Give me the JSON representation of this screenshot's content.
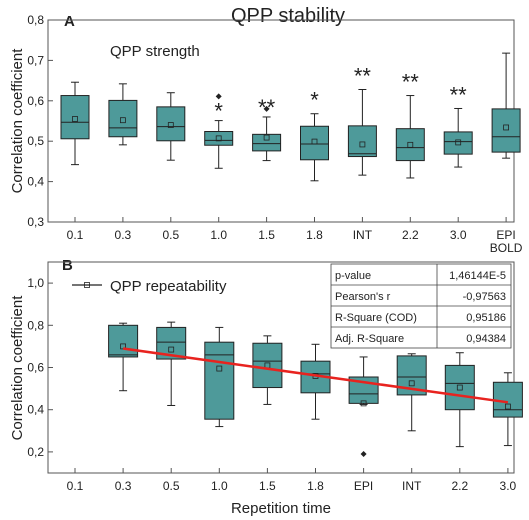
{
  "figure_title": "QPP stability",
  "chart_data": [
    {
      "panel": "A",
      "type": "box",
      "subtitle": "QPP strength",
      "ylabel": "Correlation coefficient",
      "ylim": [
        0.3,
        0.8
      ],
      "yticks": [
        "0,3",
        "0,4",
        "0,5",
        "0,6",
        "0,7",
        "0,8"
      ],
      "ytick_values": [
        0.3,
        0.4,
        0.5,
        0.6,
        0.7,
        0.8
      ],
      "categories": [
        "0.1",
        "0.3",
        "0.5",
        "1.0",
        "1.5",
        "1.8",
        "INT",
        "2.2",
        "3.0",
        "EPI\nBOLD"
      ],
      "xtick_labels": [
        [
          "0.1"
        ],
        [
          "0.3"
        ],
        [
          "0.5"
        ],
        [
          "1.0"
        ],
        [
          "1.5"
        ],
        [
          "1.8"
        ],
        [
          "INT"
        ],
        [
          "2.2"
        ],
        [
          "3.0"
        ],
        [
          "EPI",
          "BOLD"
        ]
      ],
      "boxes": [
        {
          "whisker_low": 0.442,
          "q1": 0.506,
          "median": 0.547,
          "q3": 0.613,
          "whisker_high": 0.646,
          "mean": 0.555,
          "outliers": [],
          "significance": ""
        },
        {
          "whisker_low": 0.491,
          "q1": 0.511,
          "median": 0.533,
          "q3": 0.601,
          "whisker_high": 0.642,
          "mean": 0.552,
          "outliers": [],
          "significance": ""
        },
        {
          "whisker_low": 0.453,
          "q1": 0.501,
          "median": 0.536,
          "q3": 0.585,
          "whisker_high": 0.62,
          "mean": 0.54,
          "outliers": [],
          "significance": ""
        },
        {
          "whisker_low": 0.433,
          "q1": 0.49,
          "median": 0.502,
          "q3": 0.524,
          "whisker_high": 0.551,
          "mean": 0.507,
          "outliers": [
            0.611
          ],
          "significance": "*"
        },
        {
          "whisker_low": 0.452,
          "q1": 0.476,
          "median": 0.494,
          "q3": 0.517,
          "whisker_high": 0.56,
          "mean": 0.509,
          "outliers": [
            0.58
          ],
          "significance": "**"
        },
        {
          "whisker_low": 0.402,
          "q1": 0.454,
          "median": 0.493,
          "q3": 0.537,
          "whisker_high": 0.568,
          "mean": 0.499,
          "outliers": [],
          "significance": "*"
        },
        {
          "whisker_low": 0.416,
          "q1": 0.462,
          "median": 0.469,
          "q3": 0.538,
          "whisker_high": 0.628,
          "mean": 0.492,
          "outliers": [],
          "significance": "**"
        },
        {
          "whisker_low": 0.409,
          "q1": 0.452,
          "median": 0.484,
          "q3": 0.531,
          "whisker_high": 0.613,
          "mean": 0.491,
          "outliers": [],
          "significance": "**"
        },
        {
          "whisker_low": 0.436,
          "q1": 0.468,
          "median": 0.499,
          "q3": 0.523,
          "whisker_high": 0.581,
          "mean": 0.497,
          "outliers": [],
          "significance": "**"
        },
        {
          "whisker_low": 0.458,
          "q1": 0.473,
          "median": 0.511,
          "q3": 0.58,
          "whisker_high": 0.718,
          "mean": 0.534,
          "outliers": [],
          "significance": ""
        }
      ],
      "box_color": "#4e9a9a",
      "grid": false
    },
    {
      "panel": "B",
      "type": "box",
      "subtitle": "QPP repeatability",
      "xlabel": "Repetition time",
      "ylabel": "Correlation coefficient",
      "ylim": [
        0.1,
        1.1
      ],
      "yticks": [
        "0,2",
        "0,4",
        "0,6",
        "0,8",
        "1,0"
      ],
      "ytick_values": [
        0.2,
        0.4,
        0.6,
        0.8,
        1.0
      ],
      "categories": [
        "0.1",
        "0.3",
        "0.5",
        "1.0",
        "1.5",
        "1.8",
        "EPI",
        "INT",
        "2.2",
        "3.0"
      ],
      "xtick_labels": [
        [
          "0.1"
        ],
        [
          "0.3"
        ],
        [
          "0.5"
        ],
        [
          "1.0"
        ],
        [
          "1.5"
        ],
        [
          "1.8"
        ],
        [
          "EPI"
        ],
        [
          "INT"
        ],
        [
          "2.2"
        ],
        [
          "3.0"
        ]
      ],
      "boxes": [
        null,
        {
          "whisker_low": 0.49,
          "q1": 0.65,
          "median": 0.66,
          "q3": 0.8,
          "whisker_high": 0.81,
          "mean": 0.7,
          "outliers": []
        },
        {
          "whisker_low": 0.42,
          "q1": 0.64,
          "median": 0.72,
          "q3": 0.79,
          "whisker_high": 0.815,
          "mean": 0.685,
          "outliers": []
        },
        {
          "whisker_low": 0.32,
          "q1": 0.355,
          "median": 0.66,
          "q3": 0.72,
          "whisker_high": 0.79,
          "mean": 0.595,
          "outliers": []
        },
        {
          "whisker_low": 0.425,
          "q1": 0.505,
          "median": 0.63,
          "q3": 0.715,
          "whisker_high": 0.75,
          "mean": 0.61,
          "outliers": []
        },
        {
          "whisker_low": 0.355,
          "q1": 0.48,
          "median": 0.57,
          "q3": 0.63,
          "whisker_high": 0.71,
          "mean": 0.56,
          "outliers": []
        },
        {
          "whisker_low": 0.425,
          "q1": 0.43,
          "median": 0.475,
          "q3": 0.555,
          "whisker_high": 0.65,
          "mean": 0.43,
          "outliers": [
            0.19
          ]
        },
        {
          "whisker_low": 0.3,
          "q1": 0.47,
          "median": 0.555,
          "q3": 0.655,
          "whisker_high": 0.665,
          "mean": 0.525,
          "outliers": []
        },
        {
          "whisker_low": 0.225,
          "q1": 0.4,
          "median": 0.525,
          "q3": 0.61,
          "whisker_high": 0.67,
          "mean": 0.505,
          "outliers": []
        },
        {
          "whisker_low": 0.23,
          "q1": 0.365,
          "median": 0.4,
          "q3": 0.53,
          "whisker_high": 0.575,
          "mean": 0.415,
          "outliers": []
        }
      ],
      "fit_line": {
        "x_from": "0.3",
        "y_from": 0.69,
        "x_to": "3.0",
        "y_to": 0.435,
        "color": "#e8231f"
      },
      "legend": {
        "label": "QPP repeatability",
        "placement": "top-left"
      },
      "stats_table": [
        {
          "label": "p-value",
          "value": "1,46144E-5"
        },
        {
          "label": "Pearson's r",
          "value": "-0,97563"
        },
        {
          "label": "R-Square (COD)",
          "value": "0,95186"
        },
        {
          "label": "Adj. R-Square",
          "value": "0,94384"
        }
      ],
      "box_color": "#4e9a9a",
      "grid": false
    }
  ]
}
